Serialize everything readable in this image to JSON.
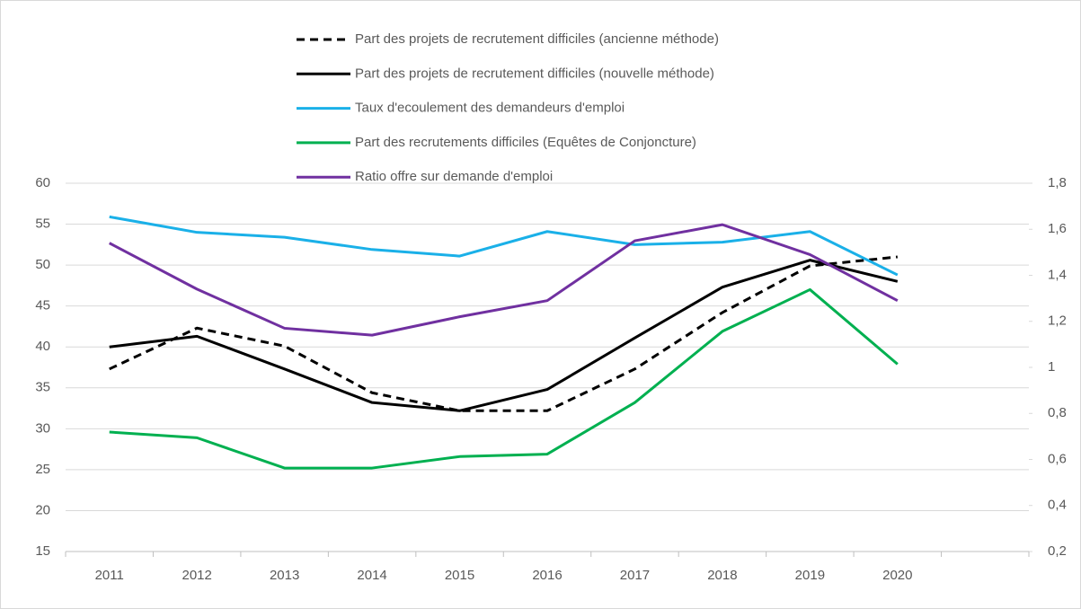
{
  "chart_data": {
    "type": "line",
    "categories": [
      "2011",
      "2012",
      "2013",
      "2014",
      "2015",
      "2016",
      "2017",
      "2018",
      "2019",
      "2020",
      null
    ],
    "series": [
      {
        "name": "Part des projets de recrutement difficiles (ancienne méthode)",
        "color": "#000000",
        "dash": true,
        "values": [
          37.3,
          42.3,
          40.1,
          34.4,
          32.2,
          32.2,
          37.3,
          44.2,
          49.9,
          51.0,
          null
        ]
      },
      {
        "name": "Part des projets de recrutement difficiles (nouvelle méthode)",
        "color": "#000000",
        "dash": false,
        "values": [
          40.0,
          41.3,
          37.3,
          33.2,
          32.2,
          34.8,
          41.1,
          47.3,
          50.6,
          48.0,
          null
        ]
      },
      {
        "name": "Taux d'ecoulement des demandeurs d'emploi",
        "color": "#1ab0e8",
        "dash": false,
        "values": [
          55.9,
          54.0,
          53.4,
          51.9,
          51.1,
          54.1,
          52.5,
          52.8,
          54.1,
          48.8,
          null
        ]
      },
      {
        "name": "Part des recrutements difficiles (Equêtes de Conjoncture)",
        "color": "#00b050",
        "dash": false,
        "values": [
          29.6,
          28.9,
          25.2,
          25.2,
          26.6,
          26.9,
          33.2,
          41.9,
          47.0,
          37.9,
          null
        ]
      },
      {
        "name": "Ratio offre sur demande d'emploi",
        "color": "#7030a0",
        "dash": false,
        "axis": "y2",
        "values": [
          1.54,
          1.34,
          1.17,
          1.14,
          1.22,
          1.29,
          1.55,
          1.62,
          1.49,
          1.29,
          null
        ]
      }
    ],
    "ylim": [
      15,
      60
    ],
    "yticks": [
      15,
      20,
      25,
      30,
      35,
      40,
      45,
      50,
      55,
      60
    ],
    "y2lim": [
      0.2,
      1.8
    ],
    "y2ticks": [
      {
        "value": 0.2,
        "label": "0,2"
      },
      {
        "value": 0.4,
        "label": "0,4"
      },
      {
        "value": 0.6,
        "label": "0,6"
      },
      {
        "value": 0.8,
        "label": "0,8"
      },
      1,
      {
        "value": 1.2,
        "label": "1,2"
      },
      {
        "value": 1.4,
        "label": "1,4"
      },
      {
        "value": 1.6,
        "label": "1,6"
      },
      {
        "value": 1.8,
        "label": "1,8"
      }
    ],
    "grid": true
  }
}
